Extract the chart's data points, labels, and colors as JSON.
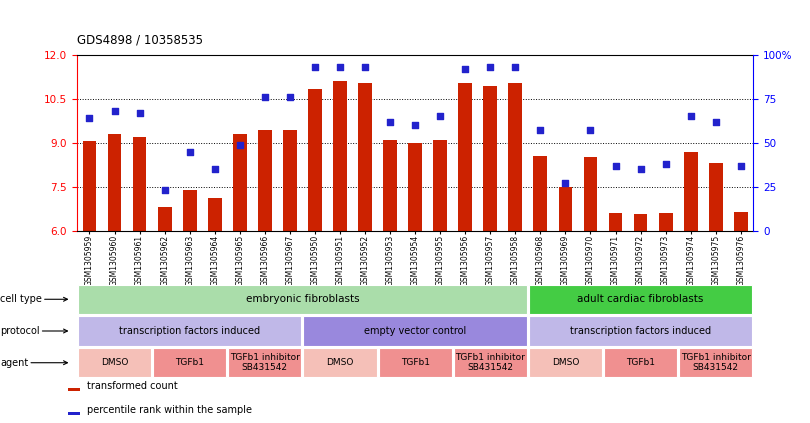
{
  "title": "GDS4898 / 10358535",
  "samples": [
    "GSM1305959",
    "GSM1305960",
    "GSM1305961",
    "GSM1305962",
    "GSM1305963",
    "GSM1305964",
    "GSM1305965",
    "GSM1305966",
    "GSM1305967",
    "GSM1305950",
    "GSM1305951",
    "GSM1305952",
    "GSM1305953",
    "GSM1305954",
    "GSM1305955",
    "GSM1305956",
    "GSM1305957",
    "GSM1305958",
    "GSM1305968",
    "GSM1305969",
    "GSM1305970",
    "GSM1305971",
    "GSM1305972",
    "GSM1305973",
    "GSM1305974",
    "GSM1305975",
    "GSM1305976"
  ],
  "bar_values": [
    9.05,
    9.3,
    9.2,
    6.8,
    7.4,
    7.1,
    9.3,
    9.45,
    9.45,
    10.85,
    11.1,
    11.05,
    9.1,
    9.0,
    9.1,
    11.05,
    10.95,
    11.05,
    8.55,
    7.5,
    8.5,
    6.6,
    6.55,
    6.6,
    8.7,
    8.3,
    6.65
  ],
  "dot_values": [
    64,
    68,
    67,
    23,
    45,
    35,
    49,
    76,
    76,
    93,
    93,
    93,
    62,
    60,
    65,
    92,
    93,
    93,
    57,
    27,
    57,
    37,
    35,
    38,
    65,
    62,
    37
  ],
  "ylim_left": [
    6,
    12
  ],
  "ylim_right": [
    0,
    100
  ],
  "yticks_left": [
    6,
    7.5,
    9,
    10.5,
    12
  ],
  "yticks_right": [
    0,
    25,
    50,
    75,
    100
  ],
  "bar_color": "#cc2200",
  "dot_color": "#2222cc",
  "bg_color": "#ffffff",
  "cell_types": [
    {
      "label": "embryonic fibroblasts",
      "start": 0,
      "end": 18,
      "color": "#aaddaa"
    },
    {
      "label": "adult cardiac fibroblasts",
      "start": 18,
      "end": 27,
      "color": "#44cc44"
    }
  ],
  "protocols": [
    {
      "label": "transcription factors induced",
      "start": 0,
      "end": 9,
      "color": "#c0b8e8"
    },
    {
      "label": "empty vector control",
      "start": 9,
      "end": 18,
      "color": "#9988dd"
    },
    {
      "label": "transcription factors induced",
      "start": 18,
      "end": 27,
      "color": "#c0b8e8"
    }
  ],
  "agents": [
    {
      "label": "DMSO",
      "start": 0,
      "end": 3,
      "color": "#f5c0b8"
    },
    {
      "label": "TGFb1",
      "start": 3,
      "end": 6,
      "color": "#f09090"
    },
    {
      "label": "TGFb1 inhibitor\nSB431542",
      "start": 6,
      "end": 9,
      "color": "#f09090"
    },
    {
      "label": "DMSO",
      "start": 9,
      "end": 12,
      "color": "#f5c0b8"
    },
    {
      "label": "TGFb1",
      "start": 12,
      "end": 15,
      "color": "#f09090"
    },
    {
      "label": "TGFb1 inhibitor\nSB431542",
      "start": 15,
      "end": 18,
      "color": "#f09090"
    },
    {
      "label": "DMSO",
      "start": 18,
      "end": 21,
      "color": "#f5c0b8"
    },
    {
      "label": "TGFb1",
      "start": 21,
      "end": 24,
      "color": "#f09090"
    },
    {
      "label": "TGFb1 inhibitor\nSB431542",
      "start": 24,
      "end": 27,
      "color": "#f09090"
    }
  ]
}
